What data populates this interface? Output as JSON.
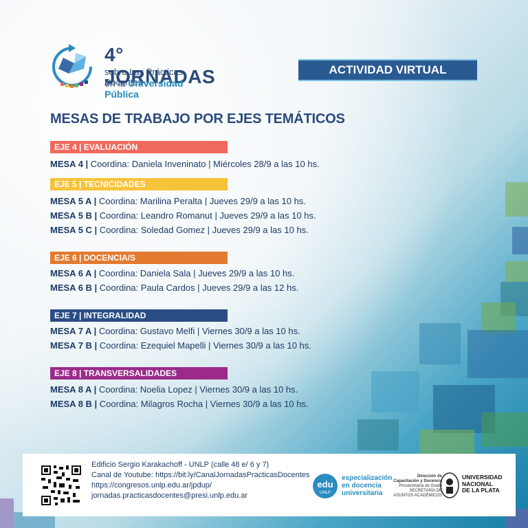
{
  "brand": {
    "title": "4° JORNADAS",
    "sub1": "sobre Las Prácticas Docentes",
    "sub2_prefix": "en la ",
    "sub2_emph": "Universidad Pública"
  },
  "badge": "ACTIVIDAD VIRTUAL",
  "heading": "MESAS DE TRABAJO POR EJES TEMÁTICOS",
  "ejes": [
    {
      "label": "EJE 4 | EVALUACIÓN",
      "color": "#ef6a5c",
      "mesas": [
        {
          "id": "MESA 4 |",
          "text": " Coordina: Daniela Inveninato | Miércoles 28/9 a las 10 hs."
        }
      ]
    },
    {
      "label": "EJE 5 | TECNICIDADES",
      "color": "#f6c33a",
      "mesas": [
        {
          "id": "MESA 5 A |",
          "text": " Coordina: Marilina Peralta | Jueves 29/9 a las 10 hs."
        },
        {
          "id": "MESA 5 B |",
          "text": " Coordina: Leandro Romanut | Jueves 29/9 a las 10 hs."
        },
        {
          "id": "MESA 5 C |",
          "text": " Coordina: Soledad Gomez | Jueves 29/9 a las 10 hs."
        }
      ]
    },
    {
      "label": "EJE 6 | DOCENCIA/S",
      "color": "#e27b2f",
      "mesas": [
        {
          "id": "MESA 6 A |",
          "text": " Coordina: Daniela Sala | Jueves 29/9 a las 10 hs."
        },
        {
          "id": "MESA 6 B |",
          "text": " Coordina: Paula Cardos | Jueves 29/9 a las 12 hs."
        }
      ]
    },
    {
      "label": "EJE 7 | INTEGRALIDAD",
      "color": "#2a4d85",
      "mesas": [
        {
          "id": "MESA 7 A |",
          "text": " Coordina: Gustavo Melfi | Viernes 30/9 a las 10 hs."
        },
        {
          "id": "MESA 7 B |",
          "text": " Coordina: Ezequiel Mapelli | Viernes 30/9 a las 10 hs."
        }
      ]
    },
    {
      "label": "EJE 8 | TRANSVERSALIDADES",
      "color": "#9b2a8a",
      "mesas": [
        {
          "id": "MESA 8 A |",
          "text": " Coordina: Noelia Lopez  | Viernes 30/9 a las 10 hs."
        },
        {
          "id": "MESA 8 B |",
          "text": " Coordina: Milagros Rocha  | Viernes 30/9 a las 10 hs."
        }
      ]
    }
  ],
  "footer": {
    "line1": "Edificio Sergio Karakachoff - UNLP (calle 48 e/ 6 y 7)",
    "line2": "Canal de Youtube: https://bit.ly/CanalJornadasPracticasDocentes",
    "line3": "https://congresos.unlp.edu.ar/jpdup/",
    "line4": "jornadas.practicasdocentes@presi.unlp.edu.ar",
    "edu_1": "especialización",
    "edu_2": "en docencia",
    "edu_3": "universitaria",
    "edu_mark": "edu",
    "edu_unlp": "UNLP",
    "dir_1": "Dirección de",
    "dir_2": "Capacitación y Docencia",
    "dir_3": "Prosecretaría de Grado",
    "dir_4": "SECRETARÍA DE",
    "dir_5": "ASUNTOS ACADÉMICOS",
    "unlp_1": "UNIVERSIDAD",
    "unlp_2": "NACIONAL",
    "unlp_3": "DE LA PLATA"
  }
}
